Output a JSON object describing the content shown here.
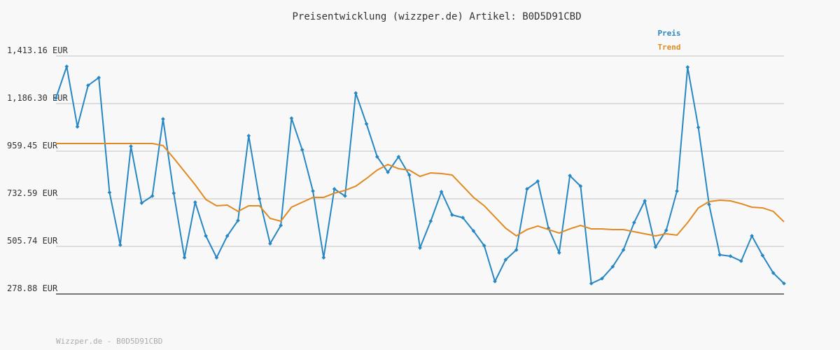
{
  "chart_data": {
    "type": "line",
    "title": "Preisentwicklung (wizzper.de) Artikel: B0D5D91CBD",
    "footer": "Wizzper.de - B0D5D91CBD",
    "ylim": [
      278.88,
      1413.16
    ],
    "yticks": [
      {
        "value": 278.88,
        "label": "278.88 EUR"
      },
      {
        "value": 505.74,
        "label": "505.74 EUR"
      },
      {
        "value": 732.59,
        "label": "732.59 EUR"
      },
      {
        "value": 959.45,
        "label": "959.45 EUR"
      },
      {
        "value": 1186.3,
        "label": "1,186.30 EUR"
      },
      {
        "value": 1413.16,
        "label": "1,413.16 EUR"
      }
    ],
    "grid": true,
    "legend": "top-right",
    "series": [
      {
        "name": "Preis",
        "color": "#2787c2",
        "markers": true,
        "values": [
          1213.0,
          1363.1,
          1076.2,
          1273.1,
          1309.8,
          762.7,
          512.5,
          982.8,
          712.6,
          746.0,
          1112.9,
          759.3,
          452.4,
          716.0,
          555.8,
          452.4,
          555.8,
          629.2,
          1032.9,
          732.6,
          519.1,
          605.8,
          1116.3,
          966.2,
          769.3,
          452.4,
          779.3,
          746.0,
          1236.4,
          1089.6,
          932.8,
          859.4,
          932.8,
          846.1,
          499.1,
          625.9,
          766.0,
          655.9,
          642.6,
          579.2,
          509.1,
          339.0,
          442.4,
          489.1,
          779.3,
          816.1,
          592.5,
          475.8,
          842.7,
          792.7,
          329.0,
          352.4,
          409.1,
          489.1,
          619.2,
          722.6,
          502.5,
          582.5,
          769.3,
          1359.8,
          1072.9,
          706.0,
          465.8,
          459.1,
          435.8,
          555.8,
          462.4,
          379.0,
          329.0
        ]
      },
      {
        "name": "Trend",
        "color": "#e08a22",
        "markers": false,
        "values": [
          996.2,
          996.2,
          996.2,
          996.2,
          996.2,
          996.2,
          996.2,
          996.2,
          996.2,
          996.2,
          986.2,
          926.1,
          862.8,
          799.4,
          729.3,
          699.3,
          702.6,
          672.6,
          699.3,
          699.3,
          639.2,
          625.9,
          692.6,
          716.0,
          739.3,
          739.3,
          759.3,
          772.7,
          792.7,
          829.4,
          869.4,
          896.1,
          876.1,
          869.4,
          839.4,
          856.1,
          852.8,
          846.1,
          792.7,
          739.3,
          699.3,
          645.9,
          592.5,
          555.8,
          585.9,
          602.6,
          585.9,
          569.2,
          589.2,
          605.8,
          589.2,
          589.2,
          585.9,
          585.9,
          575.8,
          565.8,
          555.8,
          565.8,
          559.2,
          619.2,
          689.3,
          719.3,
          726.0,
          722.6,
          709.3,
          692.6,
          689.3,
          672.6,
          622.6
        ]
      }
    ]
  }
}
